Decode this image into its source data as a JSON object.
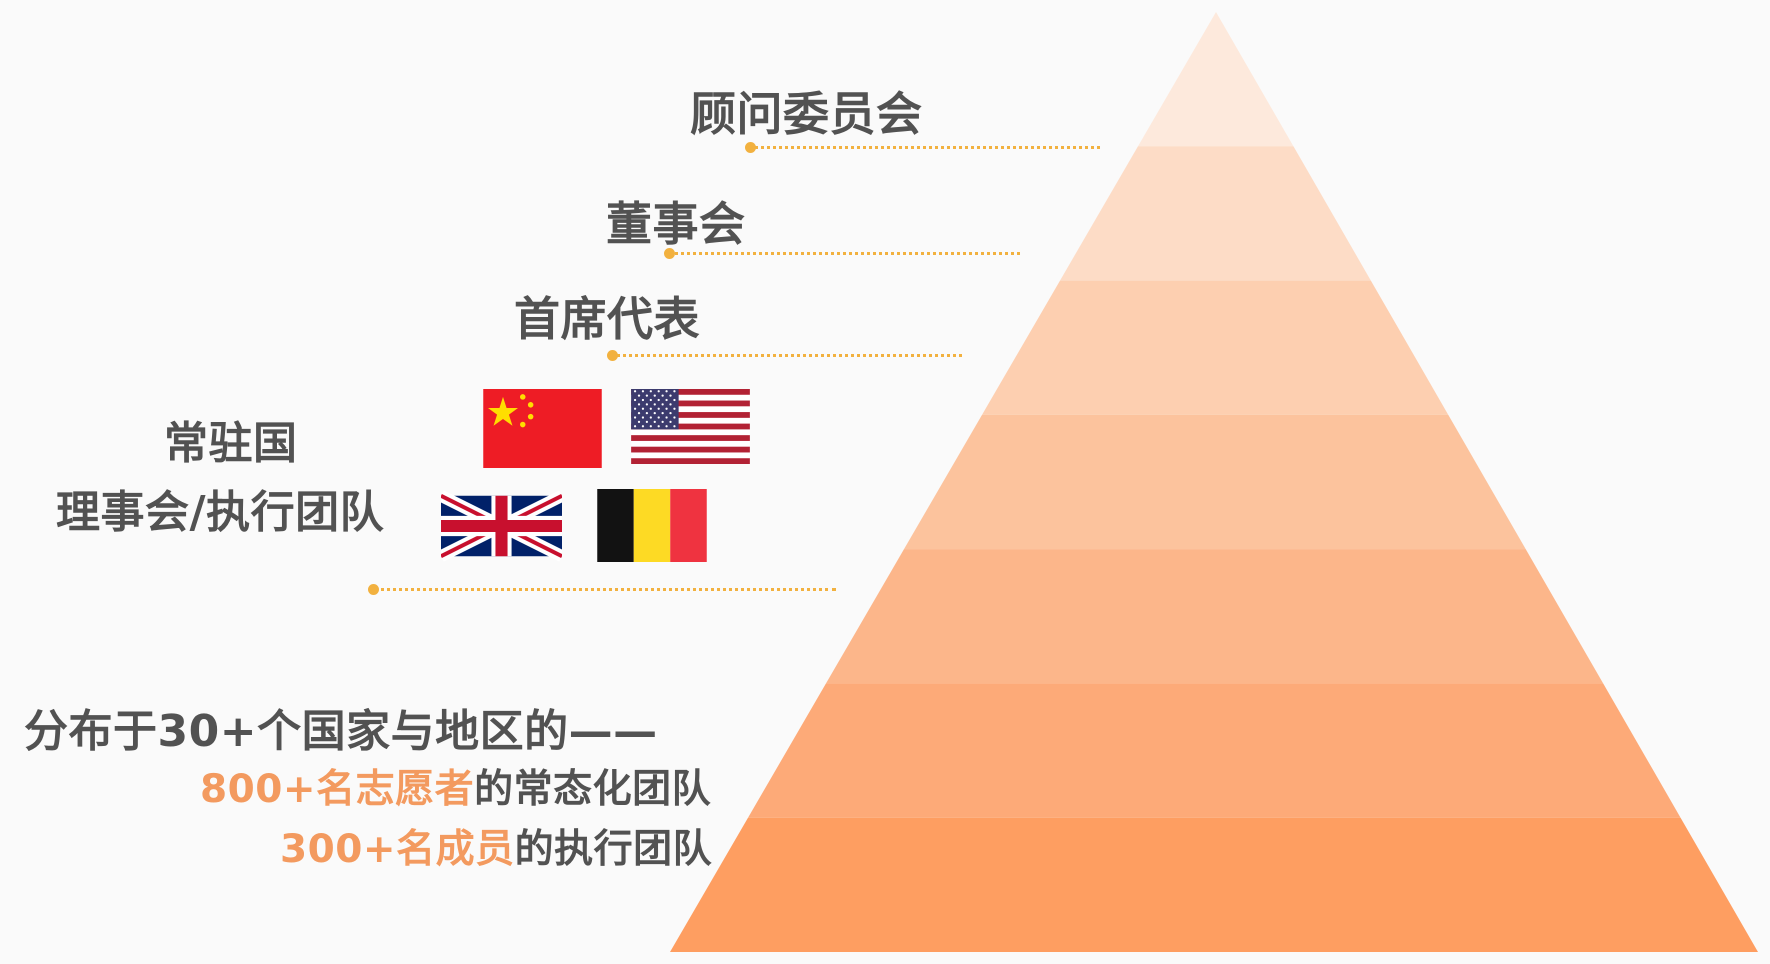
{
  "colors": {
    "text": "#525252",
    "accent_orange": "#f39a5f",
    "leader_gold": "#f2b13f",
    "pyramid_tiers": [
      "#fde9dc",
      "#fddcc6",
      "#fdcfb0",
      "#fcc39d",
      "#fcb68a",
      "#fdaa78",
      "#fe9e61"
    ]
  },
  "pyramid": {
    "tier_count": 7
  },
  "levels": {
    "advisory": "顾问委员会",
    "board": "董事会",
    "chief": "首席代表",
    "council_line1": "常驻国",
    "council_line2": "理事会/执行团队"
  },
  "base": {
    "line1": "分布于30+个国家与地区的——",
    "line2_accent": "800+名志愿者",
    "line2_rest": "的常态化团队",
    "line3_accent": "300+名成员",
    "line3_rest": "的执行团队"
  },
  "flags": [
    "china-flag",
    "usa-flag",
    "uk-flag",
    "belgium-flag"
  ]
}
